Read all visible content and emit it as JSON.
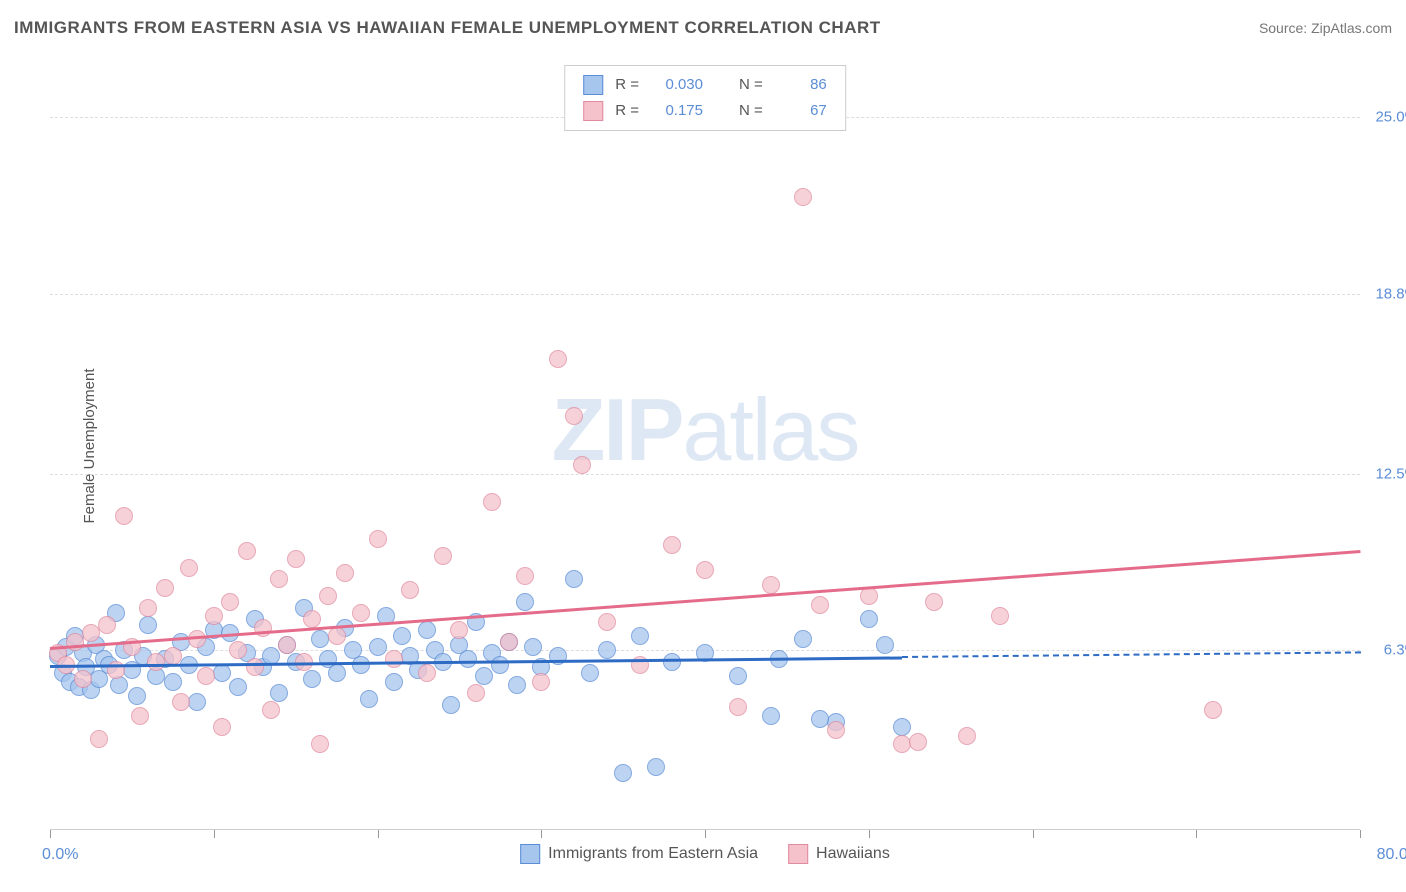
{
  "header": {
    "title": "IMMIGRANTS FROM EASTERN ASIA VS HAWAIIAN FEMALE UNEMPLOYMENT CORRELATION CHART",
    "source": "Source: ZipAtlas.com"
  },
  "ylabel": "Female Unemployment",
  "watermark": {
    "bold": "ZIP",
    "rest": "atlas"
  },
  "chart": {
    "type": "scatter",
    "xlim": [
      0,
      80
    ],
    "ylim": [
      0,
      27
    ],
    "xlabel_min": "0.0%",
    "xlabel_max": "80.0%",
    "xtick_positions": [
      0,
      10,
      20,
      30,
      40,
      50,
      60,
      70,
      80
    ],
    "yticks": [
      {
        "value": 6.3,
        "label": "6.3%"
      },
      {
        "value": 12.5,
        "label": "12.5%"
      },
      {
        "value": 18.8,
        "label": "18.8%"
      },
      {
        "value": 25.0,
        "label": "25.0%"
      }
    ],
    "grid_color": "#dddddd",
    "background_color": "#ffffff",
    "axis_label_color": "#5b8dd6",
    "marker_radius": 9,
    "series": [
      {
        "id": "series_a",
        "label": "Immigrants from Eastern Asia",
        "fill": "#a6c6ed",
        "stroke": "#5b8dd6",
        "r": "0.030",
        "n": "86",
        "trend": {
          "x0": 0,
          "y0": 5.8,
          "x1": 52,
          "y1": 6.1,
          "dash_to_x": 80,
          "color": "#2d6bc4"
        },
        "points": [
          [
            0.5,
            6.1
          ],
          [
            0.8,
            5.5
          ],
          [
            1.0,
            6.4
          ],
          [
            1.2,
            5.2
          ],
          [
            1.5,
            6.8
          ],
          [
            1.8,
            5.0
          ],
          [
            2.0,
            6.2
          ],
          [
            2.2,
            5.7
          ],
          [
            2.5,
            4.9
          ],
          [
            2.8,
            6.5
          ],
          [
            3.0,
            5.3
          ],
          [
            3.3,
            6.0
          ],
          [
            3.6,
            5.8
          ],
          [
            4.0,
            7.6
          ],
          [
            4.2,
            5.1
          ],
          [
            4.5,
            6.3
          ],
          [
            5.0,
            5.6
          ],
          [
            5.3,
            4.7
          ],
          [
            5.7,
            6.1
          ],
          [
            6.0,
            7.2
          ],
          [
            6.5,
            5.4
          ],
          [
            7.0,
            6.0
          ],
          [
            7.5,
            5.2
          ],
          [
            8.0,
            6.6
          ],
          [
            8.5,
            5.8
          ],
          [
            9.0,
            4.5
          ],
          [
            9.5,
            6.4
          ],
          [
            10.0,
            7.0
          ],
          [
            10.5,
            5.5
          ],
          [
            11.0,
            6.9
          ],
          [
            11.5,
            5.0
          ],
          [
            12.0,
            6.2
          ],
          [
            12.5,
            7.4
          ],
          [
            13.0,
            5.7
          ],
          [
            13.5,
            6.1
          ],
          [
            14.0,
            4.8
          ],
          [
            14.5,
            6.5
          ],
          [
            15.0,
            5.9
          ],
          [
            15.5,
            7.8
          ],
          [
            16.0,
            5.3
          ],
          [
            16.5,
            6.7
          ],
          [
            17.0,
            6.0
          ],
          [
            17.5,
            5.5
          ],
          [
            18.0,
            7.1
          ],
          [
            18.5,
            6.3
          ],
          [
            19.0,
            5.8
          ],
          [
            19.5,
            4.6
          ],
          [
            20.0,
            6.4
          ],
          [
            20.5,
            7.5
          ],
          [
            21.0,
            5.2
          ],
          [
            21.5,
            6.8
          ],
          [
            22.0,
            6.1
          ],
          [
            22.5,
            5.6
          ],
          [
            23.0,
            7.0
          ],
          [
            23.5,
            6.3
          ],
          [
            24.0,
            5.9
          ],
          [
            24.5,
            4.4
          ],
          [
            25.0,
            6.5
          ],
          [
            25.5,
            6.0
          ],
          [
            26.0,
            7.3
          ],
          [
            26.5,
            5.4
          ],
          [
            27.0,
            6.2
          ],
          [
            27.5,
            5.8
          ],
          [
            28.0,
            6.6
          ],
          [
            28.5,
            5.1
          ],
          [
            29.0,
            8.0
          ],
          [
            29.5,
            6.4
          ],
          [
            30.0,
            5.7
          ],
          [
            31.0,
            6.1
          ],
          [
            32.0,
            8.8
          ],
          [
            33.0,
            5.5
          ],
          [
            34.0,
            6.3
          ],
          [
            35.0,
            2.0
          ],
          [
            36.0,
            6.8
          ],
          [
            37.0,
            2.2
          ],
          [
            38.0,
            5.9
          ],
          [
            40.0,
            6.2
          ],
          [
            42.0,
            5.4
          ],
          [
            44.0,
            4.0
          ],
          [
            46.0,
            6.7
          ],
          [
            48.0,
            3.8
          ],
          [
            50.0,
            7.4
          ],
          [
            52.0,
            3.6
          ],
          [
            47.0,
            3.9
          ],
          [
            44.5,
            6.0
          ],
          [
            51.0,
            6.5
          ]
        ]
      },
      {
        "id": "series_b",
        "label": "Hawaiians",
        "fill": "#f5c2cc",
        "stroke": "#e08ba0",
        "r": "0.175",
        "n": "67",
        "trend": {
          "x0": 0,
          "y0": 6.4,
          "x1": 80,
          "y1": 9.8,
          "color": "#e56b8a"
        },
        "points": [
          [
            0.5,
            6.2
          ],
          [
            1.0,
            5.8
          ],
          [
            1.5,
            6.6
          ],
          [
            2.0,
            5.3
          ],
          [
            2.5,
            6.9
          ],
          [
            3.0,
            3.2
          ],
          [
            3.5,
            7.2
          ],
          [
            4.0,
            5.6
          ],
          [
            4.5,
            11.0
          ],
          [
            5.0,
            6.4
          ],
          [
            5.5,
            4.0
          ],
          [
            6.0,
            7.8
          ],
          [
            6.5,
            5.9
          ],
          [
            7.0,
            8.5
          ],
          [
            7.5,
            6.1
          ],
          [
            8.0,
            4.5
          ],
          [
            8.5,
            9.2
          ],
          [
            9.0,
            6.7
          ],
          [
            9.5,
            5.4
          ],
          [
            10.0,
            7.5
          ],
          [
            10.5,
            3.6
          ],
          [
            11.0,
            8.0
          ],
          [
            11.5,
            6.3
          ],
          [
            12.0,
            9.8
          ],
          [
            12.5,
            5.7
          ],
          [
            13.0,
            7.1
          ],
          [
            13.5,
            4.2
          ],
          [
            14.0,
            8.8
          ],
          [
            14.5,
            6.5
          ],
          [
            15.0,
            9.5
          ],
          [
            15.5,
            5.9
          ],
          [
            16.0,
            7.4
          ],
          [
            16.5,
            3.0
          ],
          [
            17.0,
            8.2
          ],
          [
            17.5,
            6.8
          ],
          [
            18.0,
            9.0
          ],
          [
            19.0,
            7.6
          ],
          [
            20.0,
            10.2
          ],
          [
            21.0,
            6.0
          ],
          [
            22.0,
            8.4
          ],
          [
            23.0,
            5.5
          ],
          [
            24.0,
            9.6
          ],
          [
            25.0,
            7.0
          ],
          [
            26.0,
            4.8
          ],
          [
            27.0,
            11.5
          ],
          [
            28.0,
            6.6
          ],
          [
            29.0,
            8.9
          ],
          [
            30.0,
            5.2
          ],
          [
            31.0,
            16.5
          ],
          [
            32.0,
            14.5
          ],
          [
            32.5,
            12.8
          ],
          [
            34.0,
            7.3
          ],
          [
            36.0,
            5.8
          ],
          [
            38.0,
            10.0
          ],
          [
            40.0,
            9.1
          ],
          [
            42.0,
            4.3
          ],
          [
            44.0,
            8.6
          ],
          [
            46.0,
            22.2
          ],
          [
            47.0,
            7.9
          ],
          [
            48.0,
            3.5
          ],
          [
            50.0,
            8.2
          ],
          [
            52.0,
            3.0
          ],
          [
            54.0,
            8.0
          ],
          [
            56.0,
            3.3
          ],
          [
            58.0,
            7.5
          ],
          [
            71.0,
            4.2
          ],
          [
            53.0,
            3.1
          ]
        ]
      }
    ],
    "legend": {
      "a_label": "Immigrants from Eastern Asia",
      "b_label": "Hawaiians"
    },
    "stats_labels": {
      "r": "R =",
      "n": "N ="
    }
  }
}
